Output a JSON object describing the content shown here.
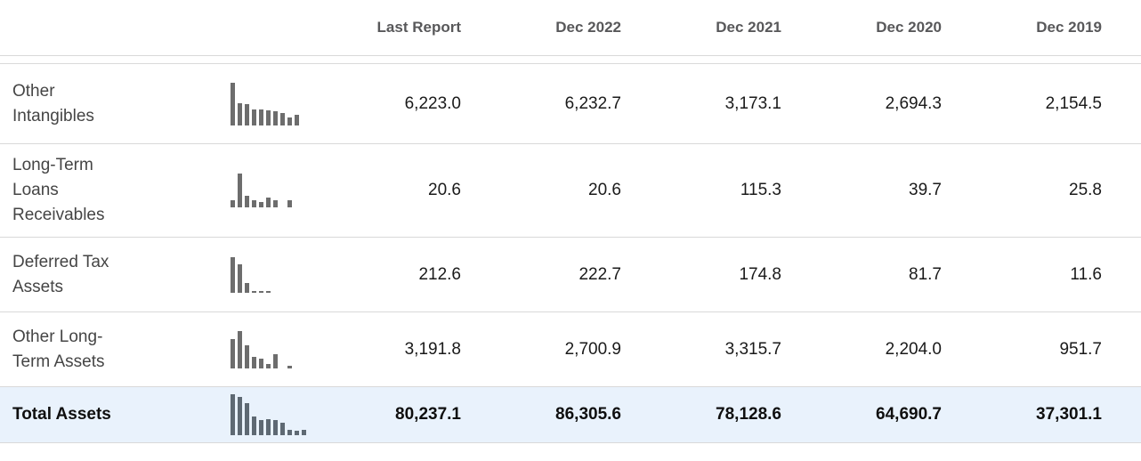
{
  "table": {
    "columns": [
      "Last Report",
      "Dec 2022",
      "Dec 2021",
      "Dec 2020",
      "Dec 2019"
    ],
    "rows": [
      {
        "label": "Other Intangibles",
        "values": [
          "6,223.0",
          "6,232.7",
          "3,173.1",
          "2,694.3",
          "2,154.5"
        ],
        "sparkline": [
          1,
          0.52,
          0.5,
          0.37,
          0.37,
          0.36,
          0.34,
          0.3,
          0.18,
          0.24
        ],
        "emphasis": false
      },
      {
        "label": "Long-Term Loans Receivables",
        "values": [
          "20.6",
          "20.6",
          "115.3",
          "39.7",
          "25.8"
        ],
        "sparkline": [
          0.2,
          1,
          0.34,
          0.2,
          0.17,
          0.3,
          0.21,
          0,
          0.2
        ],
        "emphasis": false
      },
      {
        "label": "Deferred Tax Assets",
        "values": [
          "212.6",
          "222.7",
          "174.8",
          "81.7",
          "11.6"
        ],
        "sparkline": [
          1,
          0.8,
          0.28,
          0.06,
          0.06,
          0.06
        ],
        "emphasis": false
      },
      {
        "label": "Other Long-Term Assets",
        "values": [
          "3,191.8",
          "2,700.9",
          "3,315.7",
          "2,204.0",
          "951.7"
        ],
        "sparkline": [
          0.78,
          1,
          0.62,
          0.3,
          0.25,
          0.12,
          0.38,
          0,
          0.07
        ],
        "emphasis": false
      },
      {
        "label": "Total Assets",
        "values": [
          "80,237.1",
          "86,305.6",
          "78,128.6",
          "64,690.7",
          "37,301.1"
        ],
        "sparkline": [
          1,
          0.93,
          0.78,
          0.45,
          0.38,
          0.4,
          0.36,
          0.3,
          0.12,
          0.1,
          0.13
        ],
        "emphasis": true
      }
    ]
  },
  "colors": {
    "row_border": "#d9d9d9",
    "header_text": "#58585a",
    "label_text": "#454545",
    "number_text": "#1a1a1a",
    "total_row_background": "#e9f2fc",
    "sparkline_bar": "#6d6d6d",
    "sparkline_bar_total": "#5e6973"
  }
}
